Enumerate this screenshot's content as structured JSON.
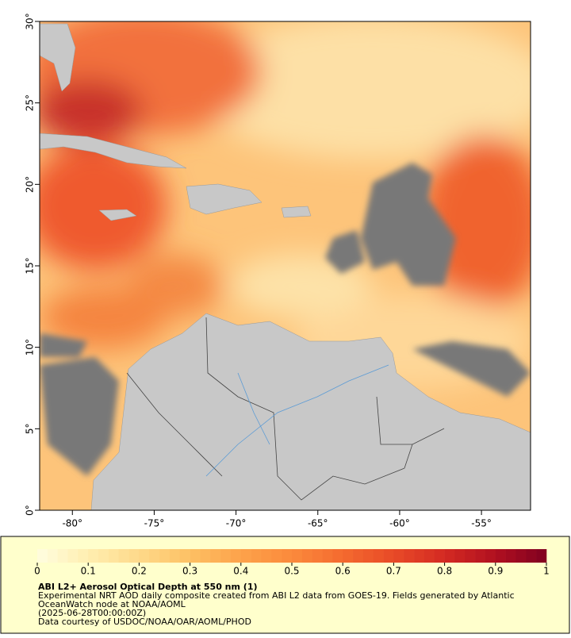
{
  "map": {
    "xlim": [
      -82,
      -52
    ],
    "ylim": [
      0,
      30
    ],
    "xticks": [
      {
        "value": -80,
        "label": "-80°"
      },
      {
        "value": -75,
        "label": "-75°"
      },
      {
        "value": -70,
        "label": "-70°"
      },
      {
        "value": -65,
        "label": "-65°"
      },
      {
        "value": -60,
        "label": "-60°"
      },
      {
        "value": -55,
        "label": "-55°"
      }
    ],
    "yticks": [
      {
        "value": 0,
        "label": "0°"
      },
      {
        "value": 5,
        "label": "5°"
      },
      {
        "value": 10,
        "label": "10°"
      },
      {
        "value": 15,
        "label": "15°"
      },
      {
        "value": 20,
        "label": "20°"
      },
      {
        "value": 25,
        "label": "25°"
      },
      {
        "value": 30,
        "label": "30°"
      }
    ]
  },
  "colorbar": {
    "range": [
      0,
      1
    ],
    "ticks": [
      0,
      0.1,
      0.2,
      0.3,
      0.4,
      0.5,
      0.6,
      0.7,
      0.8,
      0.9,
      1
    ],
    "colors": [
      "#fffde0",
      "#ffeeb0",
      "#fed98a",
      "#fdc064",
      "#fda24a",
      "#fb8a3c",
      "#f46a2f",
      "#e84a27",
      "#d42a22",
      "#b01020",
      "#800020"
    ]
  },
  "caption": {
    "title": "ABI L2+ Aerosol Optical Depth at 550 nm (1)",
    "lines": [
      "Experimental NRT AOD daily composite created from ABI L2 data from GOES-19. Fields generated by Atlantic",
      "OceanWatch node at NOAA/AOML",
      "(2025-06-28T00:00:00Z)",
      "Data courtesy of USDOC/NOAA/OAR/AOML/PHOD"
    ]
  }
}
